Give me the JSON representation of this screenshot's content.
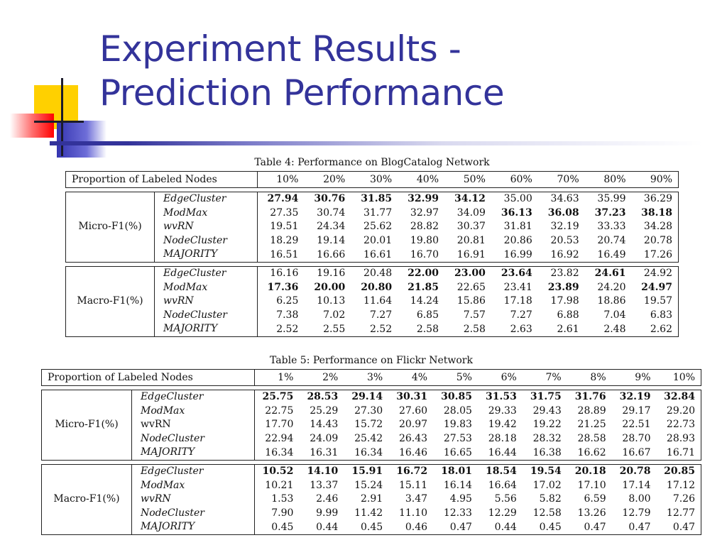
{
  "slide": {
    "title_line1": "Experiment Results -",
    "title_line2": "Prediction Performance"
  },
  "tables": [
    {
      "caption": "Table 4: Performance on BlogCatalog Network",
      "header_label": "Proportion of Labeled Nodes",
      "columns": [
        "10%",
        "20%",
        "30%",
        "40%",
        "50%",
        "60%",
        "70%",
        "80%",
        "90%"
      ],
      "groups": [
        {
          "metric": "Micro-F1(%)",
          "rows": [
            {
              "method": "EdgeCluster",
              "values": [
                "27.94",
                "30.76",
                "31.85",
                "32.99",
                "34.12",
                "35.00",
                "34.63",
                "35.99",
                "36.29"
              ],
              "bold": [
                true,
                true,
                true,
                true,
                true,
                false,
                false,
                false,
                false
              ]
            },
            {
              "method": "ModMax",
              "values": [
                "27.35",
                "30.74",
                "31.77",
                "32.97",
                "34.09",
                "36.13",
                "36.08",
                "37.23",
                "38.18"
              ],
              "bold": [
                false,
                false,
                false,
                false,
                false,
                true,
                true,
                true,
                true
              ]
            },
            {
              "method": "wvRN",
              "values": [
                "19.51",
                "24.34",
                "25.62",
                "28.82",
                "30.37",
                "31.81",
                "32.19",
                "33.33",
                "34.28"
              ],
              "bold": [
                false,
                false,
                false,
                false,
                false,
                false,
                false,
                false,
                false
              ]
            },
            {
              "method": "NodeCluster",
              "values": [
                "18.29",
                "19.14",
                "20.01",
                "19.80",
                "20.81",
                "20.86",
                "20.53",
                "20.74",
                "20.78"
              ],
              "bold": [
                false,
                false,
                false,
                false,
                false,
                false,
                false,
                false,
                false
              ]
            },
            {
              "method": "MAJORITY",
              "values": [
                "16.51",
                "16.66",
                "16.61",
                "16.70",
                "16.91",
                "16.99",
                "16.92",
                "16.49",
                "17.26"
              ],
              "bold": [
                false,
                false,
                false,
                false,
                false,
                false,
                false,
                false,
                false
              ]
            }
          ]
        },
        {
          "metric": "Macro-F1(%)",
          "rows": [
            {
              "method": "EdgeCluster",
              "values": [
                "16.16",
                "19.16",
                "20.48",
                "22.00",
                "23.00",
                "23.64",
                "23.82",
                "24.61",
                "24.92"
              ],
              "bold": [
                false,
                false,
                false,
                true,
                true,
                true,
                false,
                true,
                false
              ]
            },
            {
              "method": "ModMax",
              "values": [
                "17.36",
                "20.00",
                "20.80",
                "21.85",
                "22.65",
                "23.41",
                "23.89",
                "24.20",
                "24.97"
              ],
              "bold": [
                true,
                true,
                true,
                true,
                false,
                false,
                true,
                false,
                true
              ]
            },
            {
              "method": "wvRN",
              "values": [
                "6.25",
                "10.13",
                "11.64",
                "14.24",
                "15.86",
                "17.18",
                "17.98",
                "18.86",
                "19.57"
              ],
              "bold": [
                false,
                false,
                false,
                false,
                false,
                false,
                false,
                false,
                false
              ]
            },
            {
              "method": "NodeCluster",
              "values": [
                "7.38",
                "7.02",
                "7.27",
                "6.85",
                "7.57",
                "7.27",
                "6.88",
                "7.04",
                "6.83"
              ],
              "bold": [
                false,
                false,
                false,
                false,
                false,
                false,
                false,
                false,
                false
              ]
            },
            {
              "method": "MAJORITY",
              "values": [
                "2.52",
                "2.55",
                "2.52",
                "2.58",
                "2.58",
                "2.63",
                "2.61",
                "2.48",
                "2.62"
              ],
              "bold": [
                false,
                false,
                false,
                false,
                false,
                false,
                false,
                false,
                false
              ]
            }
          ]
        }
      ]
    },
    {
      "caption": "Table 5: Performance on Flickr Network",
      "header_label": "Proportion of Labeled Nodes",
      "columns": [
        "1%",
        "2%",
        "3%",
        "4%",
        "5%",
        "6%",
        "7%",
        "8%",
        "9%",
        "10%"
      ],
      "groups": [
        {
          "metric": "Micro-F1(%)",
          "rows": [
            {
              "method": "EdgeCluster",
              "values": [
                "25.75",
                "28.53",
                "29.14",
                "30.31",
                "30.85",
                "31.53",
                "31.75",
                "31.76",
                "32.19",
                "32.84"
              ],
              "bold": [
                true,
                true,
                true,
                true,
                true,
                true,
                true,
                true,
                true,
                true
              ]
            },
            {
              "method": "ModMax",
              "values": [
                "22.75",
                "25.29",
                "27.30",
                "27.60",
                "28.05",
                "29.33",
                "29.43",
                "28.89",
                "29.17",
                "29.20"
              ],
              "bold": [
                false,
                false,
                false,
                false,
                false,
                false,
                false,
                false,
                false,
                false
              ]
            },
            {
              "method": "wvRN",
              "values": [
                "17.70",
                "14.43",
                "15.72",
                "20.97",
                "19.83",
                "19.42",
                "19.22",
                "21.25",
                "22.51",
                "22.73"
              ],
              "bold": [
                false,
                false,
                false,
                false,
                false,
                false,
                false,
                false,
                false,
                false
              ],
              "upright": true
            },
            {
              "method": "NodeCluster",
              "values": [
                "22.94",
                "24.09",
                "25.42",
                "26.43",
                "27.53",
                "28.18",
                "28.32",
                "28.58",
                "28.70",
                "28.93"
              ],
              "bold": [
                false,
                false,
                false,
                false,
                false,
                false,
                false,
                false,
                false,
                false
              ]
            },
            {
              "method": "MAJORITY",
              "values": [
                "16.34",
                "16.31",
                "16.34",
                "16.46",
                "16.65",
                "16.44",
                "16.38",
                "16.62",
                "16.67",
                "16.71"
              ],
              "bold": [
                false,
                false,
                false,
                false,
                false,
                false,
                false,
                false,
                false,
                false
              ]
            }
          ]
        },
        {
          "metric": "Macro-F1(%)",
          "rows": [
            {
              "method": "EdgeCluster",
              "values": [
                "10.52",
                "14.10",
                "15.91",
                "16.72",
                "18.01",
                "18.54",
                "19.54",
                "20.18",
                "20.78",
                "20.85"
              ],
              "bold": [
                true,
                true,
                true,
                true,
                true,
                true,
                true,
                true,
                true,
                true
              ]
            },
            {
              "method": "ModMax",
              "values": [
                "10.21",
                "13.37",
                "15.24",
                "15.11",
                "16.14",
                "16.64",
                "17.02",
                "17.10",
                "17.14",
                "17.12"
              ],
              "bold": [
                false,
                false,
                false,
                false,
                false,
                false,
                false,
                false,
                false,
                false
              ]
            },
            {
              "method": "wvRN",
              "values": [
                "1.53",
                "2.46",
                "2.91",
                "3.47",
                "4.95",
                "5.56",
                "5.82",
                "6.59",
                "8.00",
                "7.26"
              ],
              "bold": [
                false,
                false,
                false,
                false,
                false,
                false,
                false,
                false,
                false,
                false
              ]
            },
            {
              "method": "NodeCluster",
              "values": [
                "7.90",
                "9.99",
                "11.42",
                "11.10",
                "12.33",
                "12.29",
                "12.58",
                "13.26",
                "12.79",
                "12.77"
              ],
              "bold": [
                false,
                false,
                false,
                false,
                false,
                false,
                false,
                false,
                false,
                false
              ]
            },
            {
              "method": "MAJORITY",
              "values": [
                "0.45",
                "0.44",
                "0.45",
                "0.46",
                "0.47",
                "0.44",
                "0.45",
                "0.47",
                "0.47",
                "0.47"
              ],
              "bold": [
                false,
                false,
                false,
                false,
                false,
                false,
                false,
                false,
                false,
                false
              ]
            }
          ]
        }
      ]
    }
  ]
}
